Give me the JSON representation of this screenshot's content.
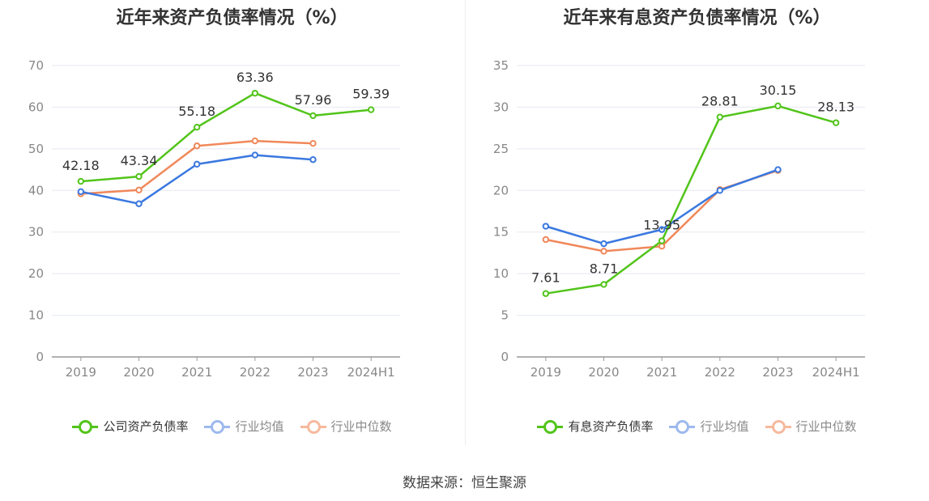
{
  "source_label": "数据来源：恒生聚源",
  "chart_data": [
    {
      "type": "line",
      "title": "近年来资产负债率情况（%）",
      "categories": [
        "2019",
        "2020",
        "2021",
        "2022",
        "2023",
        "2024H1"
      ],
      "ylim": [
        0,
        70
      ],
      "yticks": [
        0,
        10,
        20,
        30,
        40,
        50,
        60,
        70
      ],
      "grid": true,
      "legend_position": "bottom",
      "series": [
        {
          "name": "公司资产负债率",
          "color": "#52c41a",
          "values": [
            42.18,
            43.34,
            55.18,
            63.36,
            57.96,
            59.39
          ],
          "labels": [
            "42.18",
            "43.34",
            "55.18",
            "63.36",
            "57.96",
            "59.39"
          ]
        },
        {
          "name": "行业均值",
          "color": "#3a78e0",
          "values": [
            39.7,
            36.8,
            46.3,
            48.5,
            47.4,
            null
          ]
        },
        {
          "name": "行业中位数",
          "color": "#f0885a",
          "values": [
            39.2,
            40.1,
            50.7,
            51.9,
            51.3,
            null
          ]
        }
      ]
    },
    {
      "type": "line",
      "title": "近年来有息资产负债率情况（%）",
      "categories": [
        "2019",
        "2020",
        "2021",
        "2022",
        "2023",
        "2024H1"
      ],
      "ylim": [
        0,
        35
      ],
      "yticks": [
        0,
        5,
        10,
        15,
        20,
        25,
        30,
        35
      ],
      "grid": true,
      "legend_position": "bottom",
      "series": [
        {
          "name": "有息资产负债率",
          "color": "#52c41a",
          "values": [
            7.61,
            8.71,
            13.95,
            28.81,
            30.15,
            28.13
          ],
          "labels": [
            "7.61",
            "8.71",
            "13.95",
            "28.81",
            "30.15",
            "28.13"
          ]
        },
        {
          "name": "行业均值",
          "color": "#3a78e0",
          "values": [
            15.7,
            13.6,
            15.3,
            20.0,
            22.5,
            null
          ]
        },
        {
          "name": "行业中位数",
          "color": "#f0885a",
          "values": [
            14.1,
            12.7,
            13.3,
            20.1,
            22.4,
            null
          ]
        }
      ]
    }
  ]
}
